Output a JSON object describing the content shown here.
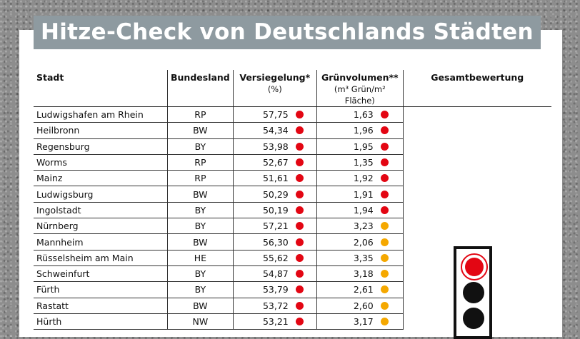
{
  "title": "Hitze-Check von Deutschlands Städten",
  "colors": {
    "red": "#e30613",
    "orange": "#f5a800"
  },
  "columns": {
    "stadt": "Stadt",
    "bundesland": "Bundesland",
    "versiegelung": "Versiegelung*",
    "versiegelung_unit": "(%)",
    "gruenvolumen": "Grünvolumen**",
    "gruenvolumen_unit": "(m³ Grün/m² Fläche)",
    "gesamt": "Gesamtbewertung"
  },
  "rows": [
    {
      "stadt": "Ludwigshafen am Rhein",
      "land": "RP",
      "vers": "57,75",
      "vers_rating": "red",
      "gruen": "1,63",
      "gruen_rating": "red"
    },
    {
      "stadt": "Heilbronn",
      "land": "BW",
      "vers": "54,34",
      "vers_rating": "red",
      "gruen": "1,96",
      "gruen_rating": "red"
    },
    {
      "stadt": "Regensburg",
      "land": "BY",
      "vers": "53,98",
      "vers_rating": "red",
      "gruen": "1,95",
      "gruen_rating": "red"
    },
    {
      "stadt": "Worms",
      "land": "RP",
      "vers": "52,67",
      "vers_rating": "red",
      "gruen": "1,35",
      "gruen_rating": "red"
    },
    {
      "stadt": "Mainz",
      "land": "RP",
      "vers": "51,61",
      "vers_rating": "red",
      "gruen": "1,92",
      "gruen_rating": "red"
    },
    {
      "stadt": "Ludwigsburg",
      "land": "BW",
      "vers": "50,29",
      "vers_rating": "red",
      "gruen": "1,91",
      "gruen_rating": "red"
    },
    {
      "stadt": "Ingolstadt",
      "land": "BY",
      "vers": "50,19",
      "vers_rating": "red",
      "gruen": "1,94",
      "gruen_rating": "red"
    },
    {
      "stadt": "Nürnberg",
      "land": "BY",
      "vers": "57,21",
      "vers_rating": "red",
      "gruen": "3,23",
      "gruen_rating": "orange"
    },
    {
      "stadt": "Mannheim",
      "land": "BW",
      "vers": "56,30",
      "vers_rating": "red",
      "gruen": "2,06",
      "gruen_rating": "orange"
    },
    {
      "stadt": "Rüsselsheim am Main",
      "land": "HE",
      "vers": "55,62",
      "vers_rating": "red",
      "gruen": "3,35",
      "gruen_rating": "orange"
    },
    {
      "stadt": "Schweinfurt",
      "land": "BY",
      "vers": "54,87",
      "vers_rating": "red",
      "gruen": "3,18",
      "gruen_rating": "orange"
    },
    {
      "stadt": "Fürth",
      "land": "BY",
      "vers": "53,79",
      "vers_rating": "red",
      "gruen": "2,61",
      "gruen_rating": "orange"
    },
    {
      "stadt": "Rastatt",
      "land": "BW",
      "vers": "53,72",
      "vers_rating": "red",
      "gruen": "2,60",
      "gruen_rating": "orange"
    },
    {
      "stadt": "Hürth",
      "land": "NW",
      "vers": "53,21",
      "vers_rating": "red",
      "gruen": "3,17",
      "gruen_rating": "orange"
    }
  ],
  "gesamtbewertung": "red"
}
